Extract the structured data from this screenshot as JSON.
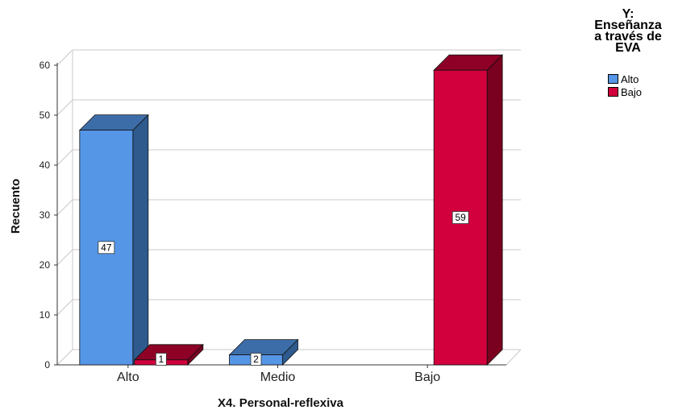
{
  "legend": {
    "title_lines": [
      "Y:",
      "Enseñanza",
      "a través de",
      "EVA"
    ],
    "items": [
      {
        "label": "Alto",
        "color": "#5596E6"
      },
      {
        "label": "Bajo",
        "color": "#D2003C"
      }
    ]
  },
  "chart_data": {
    "type": "bar",
    "title": "",
    "xlabel": "X4. Personal-reflexiva",
    "ylabel": "Recuento",
    "categories": [
      "Alto",
      "Medio",
      "Bajo"
    ],
    "series": [
      {
        "name": "Alto",
        "values": [
          47,
          2,
          null
        ],
        "color": "#5596E6",
        "side_color": "#2E5A8E",
        "top_color": "#3D6DA8"
      },
      {
        "name": "Bajo",
        "values": [
          1,
          null,
          59
        ],
        "color": "#D2003C",
        "side_color": "#7A0020",
        "top_color": "#8E0026"
      }
    ],
    "ylim": [
      0,
      60
    ],
    "yticks": [
      0,
      10,
      20,
      30,
      40,
      50,
      60
    ],
    "grid": true,
    "legend_position": "top-right",
    "data_labels": true,
    "style": "3d-bar"
  }
}
